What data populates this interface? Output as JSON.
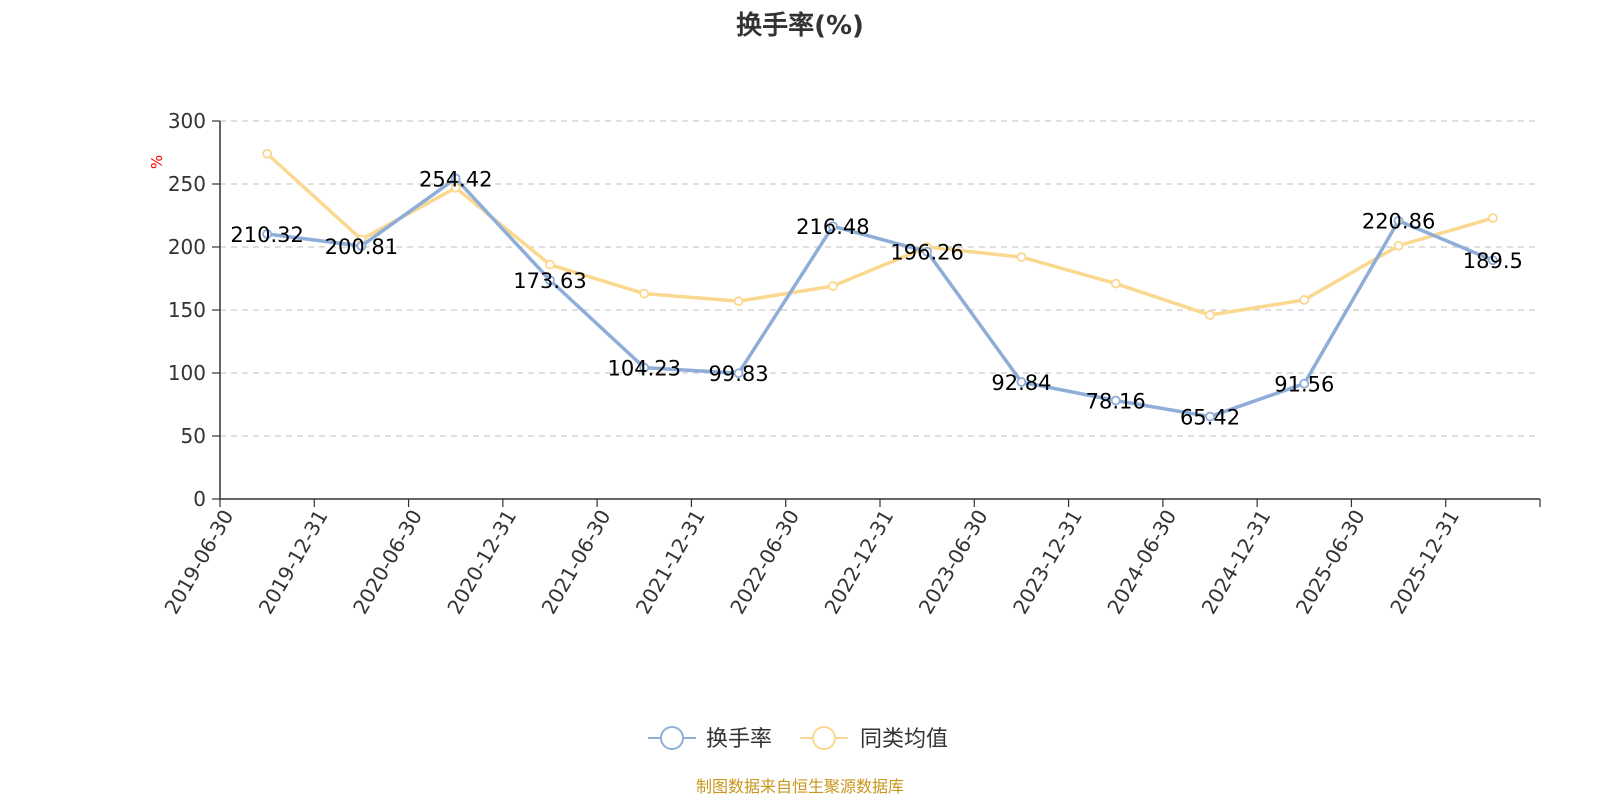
{
  "chart_data": {
    "type": "line",
    "title": "换手率(%)",
    "ylabel": "%",
    "xlabel": "",
    "ylim": [
      0,
      300
    ],
    "yticks": [
      0,
      50,
      100,
      150,
      200,
      250,
      300
    ],
    "grid": true,
    "legend_position": "bottom-center",
    "categories": [
      "2019-06-30",
      "2019-12-31",
      "2020-06-30",
      "2020-12-31",
      "2021-06-30",
      "2021-12-31",
      "2022-06-30",
      "2022-12-31",
      "2023-06-30",
      "2023-12-31",
      "2024-06-30",
      "2024-12-31",
      "2025-06-30",
      "2025-12-31"
    ],
    "series": [
      {
        "name": "换手率",
        "color": "#8eaed9",
        "values": [
          210.32,
          200.81,
          254.42,
          173.63,
          104.23,
          99.83,
          216.48,
          196.26,
          92.84,
          78.16,
          65.42,
          91.56,
          220.86,
          189.5
        ],
        "labels": [
          "210.32",
          "200.81",
          "254.42",
          "173.63",
          "104.23",
          "99.83",
          "216.48",
          "196.26",
          "92.84",
          "78.16",
          "65.42",
          "91.56",
          "220.86",
          "189.5"
        ]
      },
      {
        "name": "同类均值",
        "color": "#fbd88f",
        "values": [
          274,
          206,
          247,
          186,
          163,
          157,
          169,
          200,
          192,
          171,
          146,
          158,
          201,
          223
        ]
      }
    ],
    "source": "制图数据来自恒生聚源数据库",
    "source_color": "#c8961e"
  }
}
